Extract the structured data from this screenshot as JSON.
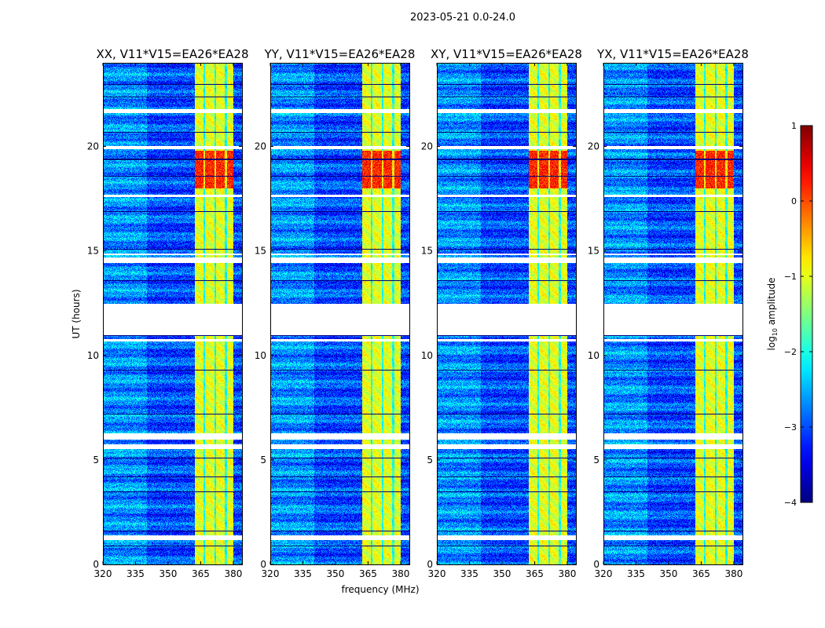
{
  "chart_data": {
    "type": "heatmap",
    "title": "2023-05-21 0.0-24.0",
    "xlabel": "frequency (MHz)",
    "ylabel": "UT (hours)",
    "xlim": [
      320,
      384
    ],
    "ylim": [
      0,
      24
    ],
    "xticks": [
      320,
      335,
      350,
      365,
      380
    ],
    "yticks": [
      0,
      5,
      10,
      15,
      20
    ],
    "panels": [
      {
        "title": "XX, V11*V15=EA26*EA28"
      },
      {
        "title": "YY, V11*V15=EA26*EA28"
      },
      {
        "title": "XY, V11*V15=EA26*EA28"
      },
      {
        "title": "YX, V11*V15=EA26*EA28"
      }
    ],
    "colorbar": {
      "label": "log10 amplitude",
      "label_main": "log",
      "label_sub": "10",
      "label_tail": " amplitude",
      "range": [
        -4,
        1
      ],
      "ticks": [
        1,
        0,
        -1,
        -2,
        -3,
        -4
      ],
      "tick_labels": [
        "1",
        "0",
        "−1",
        "−2",
        "−3",
        "−4"
      ],
      "colormap": "jet"
    },
    "structure": {
      "background_level": -3.0,
      "rfi_band_mhz": [
        362,
        380
      ],
      "rfi_level": -1.0,
      "strong_rfi_hours": [
        18.0,
        19.8
      ],
      "strong_rfi_level": 0.2,
      "flagged_hours": [
        [
          11.0,
          12.5
        ],
        [
          21.6,
          21.8
        ],
        [
          19.9,
          20.05
        ],
        [
          17.6,
          17.7
        ],
        [
          14.45,
          14.7
        ],
        [
          14.8,
          14.9
        ],
        [
          6.0,
          6.3
        ],
        [
          5.55,
          5.75
        ],
        [
          1.2,
          1.4
        ],
        [
          10.7,
          10.8
        ]
      ],
      "dark_rows_hours": [
        23.0,
        22.4,
        20.7,
        19.4,
        18.6,
        16.9,
        15.1,
        13.6,
        10.95,
        9.3,
        7.2,
        5.1,
        4.2,
        3.5,
        1.6,
        0.9
      ]
    }
  }
}
